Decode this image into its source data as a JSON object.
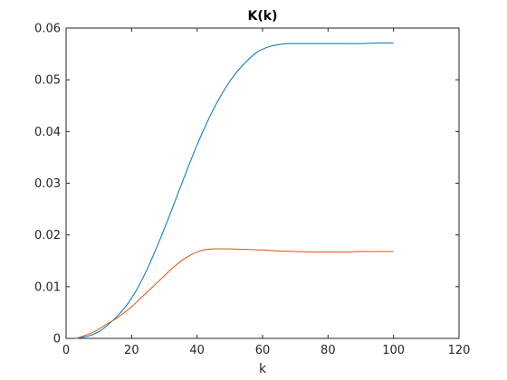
{
  "chart_data": {
    "type": "line",
    "title": "K(k)",
    "xlabel": "k",
    "ylabel": "",
    "xlim": [
      0,
      120
    ],
    "ylim": [
      0,
      0.06
    ],
    "x_ticks": [
      0,
      20,
      40,
      60,
      80,
      100,
      120
    ],
    "y_ticks": [
      0,
      0.01,
      0.02,
      0.03,
      0.04,
      0.05,
      0.06
    ],
    "x_tick_labels": [
      "0",
      "20",
      "40",
      "60",
      "80",
      "100",
      "120"
    ],
    "y_tick_labels": [
      "0",
      "0.01",
      "0.02",
      "0.03",
      "0.04",
      "0.05",
      "0.06"
    ],
    "grid": false,
    "legend": "none",
    "series": [
      {
        "color": "#0072BD",
        "x": [
          3,
          5,
          8,
          10,
          12,
          15,
          18,
          20,
          22,
          25,
          28,
          30,
          32,
          35,
          38,
          40,
          42,
          45,
          48,
          50,
          52,
          55,
          58,
          60,
          62,
          65,
          68,
          70,
          75,
          80,
          85,
          90,
          95,
          100
        ],
        "y": [
          0.0,
          0.0002,
          0.0007,
          0.0013,
          0.0022,
          0.0039,
          0.006,
          0.0078,
          0.0099,
          0.0137,
          0.0181,
          0.0212,
          0.0244,
          0.0294,
          0.0343,
          0.0374,
          0.0403,
          0.0443,
          0.0477,
          0.0497,
          0.0514,
          0.0535,
          0.0552,
          0.0559,
          0.0564,
          0.0568,
          0.057,
          0.057,
          0.057,
          0.057,
          0.057,
          0.057,
          0.0571,
          0.0571
        ]
      },
      {
        "color": "#D95319",
        "x": [
          3,
          5,
          8,
          10,
          12,
          15,
          18,
          20,
          22,
          25,
          28,
          30,
          32,
          35,
          38,
          40,
          42,
          45,
          48,
          50,
          55,
          60,
          65,
          70,
          75,
          80,
          85,
          90,
          95,
          100
        ],
        "y": [
          0.0,
          0.0004,
          0.0011,
          0.0018,
          0.0026,
          0.0037,
          0.0051,
          0.0061,
          0.0073,
          0.0091,
          0.0109,
          0.0121,
          0.0133,
          0.0149,
          0.0161,
          0.0167,
          0.0171,
          0.0173,
          0.0173,
          0.0173,
          0.0172,
          0.0171,
          0.0169,
          0.0168,
          0.0167,
          0.0167,
          0.0167,
          0.0168,
          0.0168,
          0.0168
        ]
      }
    ]
  }
}
